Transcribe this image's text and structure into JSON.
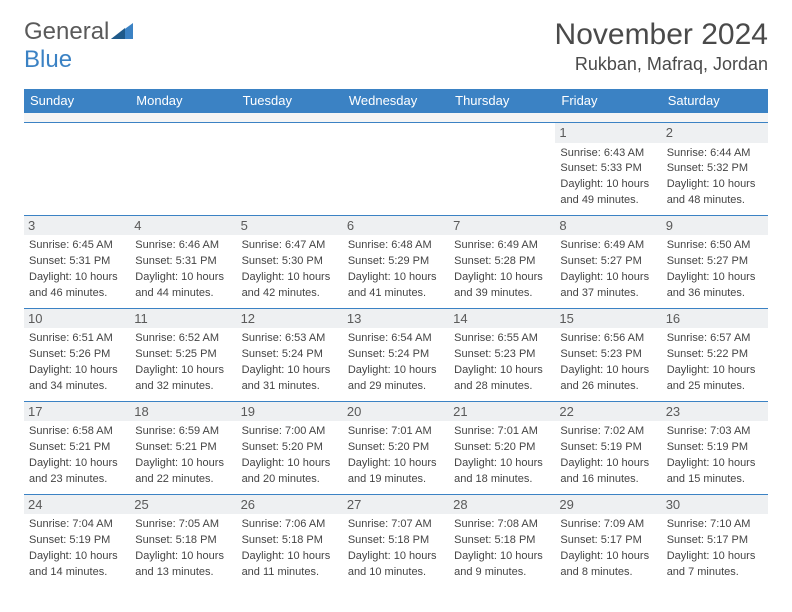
{
  "logo": {
    "text1": "General",
    "text2": "Blue"
  },
  "title": "November 2024",
  "location": "Rukban, Mafraq, Jordan",
  "colors": {
    "header_bg": "#3b82c4",
    "header_text": "#ffffff",
    "daynum_bg": "#eef0f2",
    "border": "#3b82c4",
    "text": "#444444",
    "background": "#ffffff"
  },
  "weekdays": [
    "Sunday",
    "Monday",
    "Tuesday",
    "Wednesday",
    "Thursday",
    "Friday",
    "Saturday"
  ],
  "weeks": [
    [
      {
        "n": "",
        "empty": true
      },
      {
        "n": "",
        "empty": true
      },
      {
        "n": "",
        "empty": true
      },
      {
        "n": "",
        "empty": true
      },
      {
        "n": "",
        "empty": true
      },
      {
        "n": "1",
        "sunrise": "Sunrise: 6:43 AM",
        "sunset": "Sunset: 5:33 PM",
        "daylight1": "Daylight: 10 hours",
        "daylight2": "and 49 minutes."
      },
      {
        "n": "2",
        "sunrise": "Sunrise: 6:44 AM",
        "sunset": "Sunset: 5:32 PM",
        "daylight1": "Daylight: 10 hours",
        "daylight2": "and 48 minutes."
      }
    ],
    [
      {
        "n": "3",
        "sunrise": "Sunrise: 6:45 AM",
        "sunset": "Sunset: 5:31 PM",
        "daylight1": "Daylight: 10 hours",
        "daylight2": "and 46 minutes."
      },
      {
        "n": "4",
        "sunrise": "Sunrise: 6:46 AM",
        "sunset": "Sunset: 5:31 PM",
        "daylight1": "Daylight: 10 hours",
        "daylight2": "and 44 minutes."
      },
      {
        "n": "5",
        "sunrise": "Sunrise: 6:47 AM",
        "sunset": "Sunset: 5:30 PM",
        "daylight1": "Daylight: 10 hours",
        "daylight2": "and 42 minutes."
      },
      {
        "n": "6",
        "sunrise": "Sunrise: 6:48 AM",
        "sunset": "Sunset: 5:29 PM",
        "daylight1": "Daylight: 10 hours",
        "daylight2": "and 41 minutes."
      },
      {
        "n": "7",
        "sunrise": "Sunrise: 6:49 AM",
        "sunset": "Sunset: 5:28 PM",
        "daylight1": "Daylight: 10 hours",
        "daylight2": "and 39 minutes."
      },
      {
        "n": "8",
        "sunrise": "Sunrise: 6:49 AM",
        "sunset": "Sunset: 5:27 PM",
        "daylight1": "Daylight: 10 hours",
        "daylight2": "and 37 minutes."
      },
      {
        "n": "9",
        "sunrise": "Sunrise: 6:50 AM",
        "sunset": "Sunset: 5:27 PM",
        "daylight1": "Daylight: 10 hours",
        "daylight2": "and 36 minutes."
      }
    ],
    [
      {
        "n": "10",
        "sunrise": "Sunrise: 6:51 AM",
        "sunset": "Sunset: 5:26 PM",
        "daylight1": "Daylight: 10 hours",
        "daylight2": "and 34 minutes."
      },
      {
        "n": "11",
        "sunrise": "Sunrise: 6:52 AM",
        "sunset": "Sunset: 5:25 PM",
        "daylight1": "Daylight: 10 hours",
        "daylight2": "and 32 minutes."
      },
      {
        "n": "12",
        "sunrise": "Sunrise: 6:53 AM",
        "sunset": "Sunset: 5:24 PM",
        "daylight1": "Daylight: 10 hours",
        "daylight2": "and 31 minutes."
      },
      {
        "n": "13",
        "sunrise": "Sunrise: 6:54 AM",
        "sunset": "Sunset: 5:24 PM",
        "daylight1": "Daylight: 10 hours",
        "daylight2": "and 29 minutes."
      },
      {
        "n": "14",
        "sunrise": "Sunrise: 6:55 AM",
        "sunset": "Sunset: 5:23 PM",
        "daylight1": "Daylight: 10 hours",
        "daylight2": "and 28 minutes."
      },
      {
        "n": "15",
        "sunrise": "Sunrise: 6:56 AM",
        "sunset": "Sunset: 5:23 PM",
        "daylight1": "Daylight: 10 hours",
        "daylight2": "and 26 minutes."
      },
      {
        "n": "16",
        "sunrise": "Sunrise: 6:57 AM",
        "sunset": "Sunset: 5:22 PM",
        "daylight1": "Daylight: 10 hours",
        "daylight2": "and 25 minutes."
      }
    ],
    [
      {
        "n": "17",
        "sunrise": "Sunrise: 6:58 AM",
        "sunset": "Sunset: 5:21 PM",
        "daylight1": "Daylight: 10 hours",
        "daylight2": "and 23 minutes."
      },
      {
        "n": "18",
        "sunrise": "Sunrise: 6:59 AM",
        "sunset": "Sunset: 5:21 PM",
        "daylight1": "Daylight: 10 hours",
        "daylight2": "and 22 minutes."
      },
      {
        "n": "19",
        "sunrise": "Sunrise: 7:00 AM",
        "sunset": "Sunset: 5:20 PM",
        "daylight1": "Daylight: 10 hours",
        "daylight2": "and 20 minutes."
      },
      {
        "n": "20",
        "sunrise": "Sunrise: 7:01 AM",
        "sunset": "Sunset: 5:20 PM",
        "daylight1": "Daylight: 10 hours",
        "daylight2": "and 19 minutes."
      },
      {
        "n": "21",
        "sunrise": "Sunrise: 7:01 AM",
        "sunset": "Sunset: 5:20 PM",
        "daylight1": "Daylight: 10 hours",
        "daylight2": "and 18 minutes."
      },
      {
        "n": "22",
        "sunrise": "Sunrise: 7:02 AM",
        "sunset": "Sunset: 5:19 PM",
        "daylight1": "Daylight: 10 hours",
        "daylight2": "and 16 minutes."
      },
      {
        "n": "23",
        "sunrise": "Sunrise: 7:03 AM",
        "sunset": "Sunset: 5:19 PM",
        "daylight1": "Daylight: 10 hours",
        "daylight2": "and 15 minutes."
      }
    ],
    [
      {
        "n": "24",
        "sunrise": "Sunrise: 7:04 AM",
        "sunset": "Sunset: 5:19 PM",
        "daylight1": "Daylight: 10 hours",
        "daylight2": "and 14 minutes."
      },
      {
        "n": "25",
        "sunrise": "Sunrise: 7:05 AM",
        "sunset": "Sunset: 5:18 PM",
        "daylight1": "Daylight: 10 hours",
        "daylight2": "and 13 minutes."
      },
      {
        "n": "26",
        "sunrise": "Sunrise: 7:06 AM",
        "sunset": "Sunset: 5:18 PM",
        "daylight1": "Daylight: 10 hours",
        "daylight2": "and 11 minutes."
      },
      {
        "n": "27",
        "sunrise": "Sunrise: 7:07 AM",
        "sunset": "Sunset: 5:18 PM",
        "daylight1": "Daylight: 10 hours",
        "daylight2": "and 10 minutes."
      },
      {
        "n": "28",
        "sunrise": "Sunrise: 7:08 AM",
        "sunset": "Sunset: 5:18 PM",
        "daylight1": "Daylight: 10 hours",
        "daylight2": "and 9 minutes."
      },
      {
        "n": "29",
        "sunrise": "Sunrise: 7:09 AM",
        "sunset": "Sunset: 5:17 PM",
        "daylight1": "Daylight: 10 hours",
        "daylight2": "and 8 minutes."
      },
      {
        "n": "30",
        "sunrise": "Sunrise: 7:10 AM",
        "sunset": "Sunset: 5:17 PM",
        "daylight1": "Daylight: 10 hours",
        "daylight2": "and 7 minutes."
      }
    ]
  ]
}
